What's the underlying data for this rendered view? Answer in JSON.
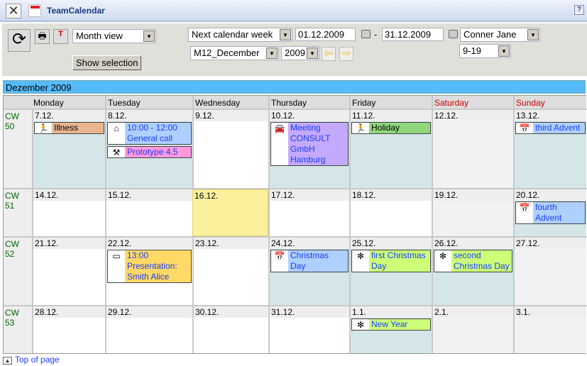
{
  "app": {
    "title": "TeamCalendar",
    "help": "?"
  },
  "toolbar": {
    "view": "Month view",
    "show_selection": "Show selection",
    "range_preset": "Next calendar week",
    "date_from": "01.12.2009",
    "date_to": "31.12.2009",
    "separator": "-",
    "person": "Conner Jane",
    "month": "M12_December",
    "year": "2009",
    "hours": "9-19"
  },
  "month_title": "Dezember 2009",
  "weekdays": [
    {
      "label": "Monday",
      "color": "#000"
    },
    {
      "label": "Tuesday",
      "color": "#000"
    },
    {
      "label": "Wednesday",
      "color": "#000"
    },
    {
      "label": "Thursday",
      "color": "#000"
    },
    {
      "label": "Friday",
      "color": "#000"
    },
    {
      "label": "Saturday",
      "color": "#cc0000"
    },
    {
      "label": "Sunday",
      "color": "#cc0000"
    }
  ],
  "colors": {
    "shaded": "#d5e6e9",
    "weekend": "#f2f2f2",
    "today": "#fbf09c",
    "white": "#ffffff"
  },
  "weeks": [
    {
      "cw": "CW 50",
      "days": [
        {
          "date": "7.12.",
          "bg": "shaded",
          "events": [
            {
              "icon": "exit-person-icon",
              "text": "Illness",
              "color": "#eab58e",
              "textColor": "#000"
            }
          ]
        },
        {
          "date": "8.12.",
          "bg": "shaded",
          "events": [
            {
              "icon": "house-icon",
              "text": "10:00 - 12:00 General call",
              "color": "#aed0ff"
            },
            {
              "icon": "tools-icon",
              "text": "Prototype 4.5",
              "color": "#ff99dd"
            }
          ]
        },
        {
          "date": "9.12.",
          "bg": "white",
          "events": []
        },
        {
          "date": "10.12.",
          "bg": "shaded",
          "events": [
            {
              "icon": "car-icon",
              "text": "Meeting CONSULT GmbH Hamburg",
              "color": "#c4aaff"
            }
          ]
        },
        {
          "date": "11.12.",
          "bg": "shaded",
          "events": [
            {
              "icon": "exit-person-icon",
              "text": "Holiday",
              "color": "#8fd77a",
              "textColor": "#000"
            }
          ]
        },
        {
          "date": "12.12.",
          "bg": "weekend",
          "events": []
        },
        {
          "date": "13.12.",
          "bg": "shaded",
          "events": [
            {
              "icon": "calendar-icon",
              "text": "third Advent",
              "color": "#aed0ff"
            }
          ]
        }
      ]
    },
    {
      "cw": "CW 51",
      "days": [
        {
          "date": "14.12.",
          "bg": "white",
          "events": []
        },
        {
          "date": "15.12.",
          "bg": "white",
          "events": []
        },
        {
          "date": "16.12.",
          "bg": "today",
          "events": []
        },
        {
          "date": "17.12.",
          "bg": "white",
          "events": []
        },
        {
          "date": "18.12.",
          "bg": "white",
          "events": []
        },
        {
          "date": "19.12.",
          "bg": "weekend",
          "events": []
        },
        {
          "date": "20.12.",
          "bg": "shaded",
          "events": [
            {
              "icon": "calendar-icon",
              "text": "fourth Advent",
              "color": "#aed0ff"
            }
          ]
        }
      ]
    },
    {
      "cw": "CW 52",
      "days": [
        {
          "date": "21.12.",
          "bg": "white",
          "events": []
        },
        {
          "date": "22.12.",
          "bg": "white",
          "events": [
            {
              "icon": "presentation-icon",
              "text": "13:00 Presentation: Smith Alice",
              "color": "#ffd966"
            }
          ]
        },
        {
          "date": "23.12.",
          "bg": "white",
          "events": []
        },
        {
          "date": "24.12.",
          "bg": "shaded",
          "events": [
            {
              "icon": "calendar-icon",
              "text": "Christmas Day",
              "color": "#aed0ff"
            }
          ]
        },
        {
          "date": "25.12.",
          "bg": "shaded",
          "events": [
            {
              "icon": "pinwheel-icon",
              "text": "first Christmas Day",
              "color": "#ccff77"
            }
          ]
        },
        {
          "date": "26.12.",
          "bg": "shaded",
          "events": [
            {
              "icon": "pinwheel-icon",
              "text": "second Christmas Day",
              "color": "#ccff77"
            }
          ]
        },
        {
          "date": "27.12.",
          "bg": "weekend",
          "events": []
        }
      ]
    },
    {
      "cw": "CW 53",
      "days": [
        {
          "date": "28.12.",
          "bg": "white",
          "events": []
        },
        {
          "date": "29.12.",
          "bg": "white",
          "events": []
        },
        {
          "date": "30.12.",
          "bg": "white",
          "events": []
        },
        {
          "date": "31.12.",
          "bg": "white",
          "events": []
        },
        {
          "date": "1.1.",
          "bg": "shaded",
          "events": [
            {
              "icon": "pinwheel-icon",
              "text": "New Year",
              "color": "#ccff77"
            }
          ]
        },
        {
          "date": "2.1.",
          "bg": "weekend",
          "events": []
        },
        {
          "date": "3.1.",
          "bg": "weekend",
          "events": []
        }
      ]
    }
  ],
  "footer": {
    "top_link": "Top of page"
  }
}
